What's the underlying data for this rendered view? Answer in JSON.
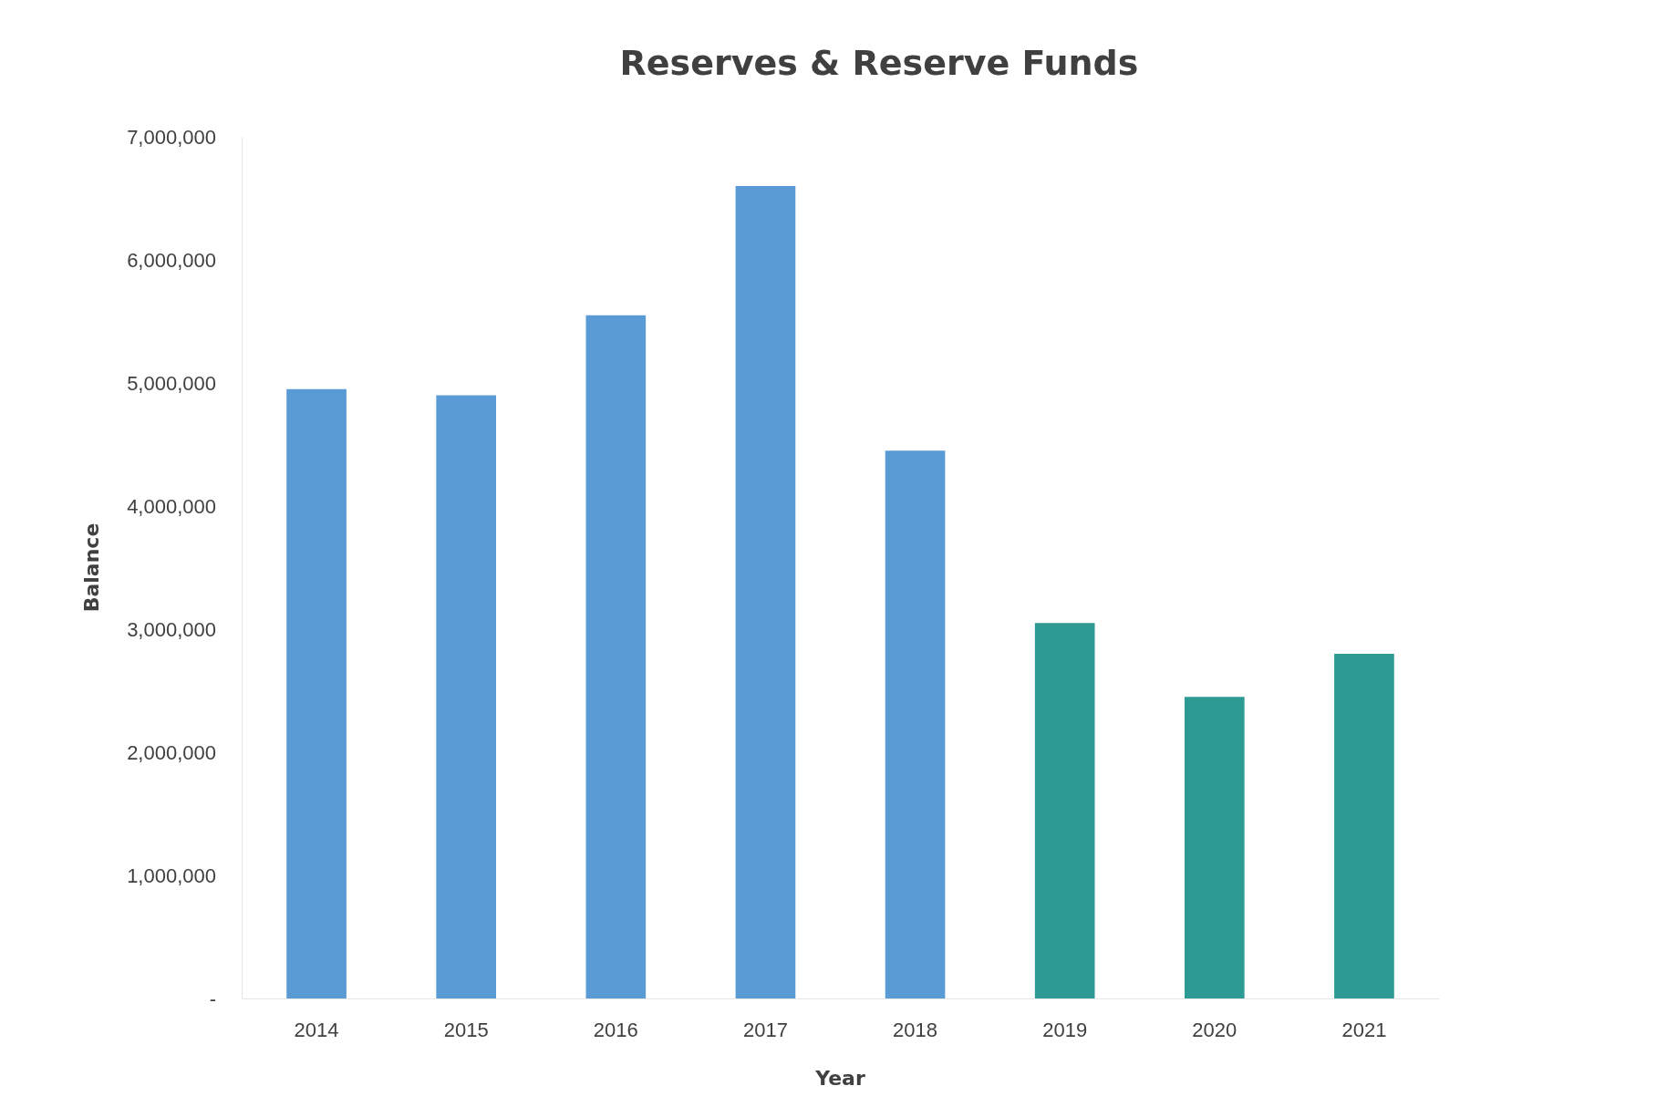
{
  "chart_data": {
    "type": "bar",
    "title": "Reserves & Reserve Funds",
    "xlabel": "Year",
    "ylabel": "Balance",
    "categories": [
      "2014",
      "2015",
      "2016",
      "2017",
      "2018",
      "2019",
      "2020",
      "2021"
    ],
    "values": [
      4950000,
      4900000,
      5550000,
      6600000,
      4450000,
      3050000,
      2450000,
      2800000
    ],
    "colors": [
      "#5b9bd5",
      "#5b9bd5",
      "#5b9bd5",
      "#5b9bd5",
      "#5b9bd5",
      "#2e9a94",
      "#2e9a94",
      "#2e9a94"
    ],
    "ylim": [
      0,
      7000000
    ],
    "yticks": [
      {
        "value": 0,
        "label": "-"
      },
      {
        "value": 1000000,
        "label": "1,000,000"
      },
      {
        "value": 2000000,
        "label": "2,000,000"
      },
      {
        "value": 3000000,
        "label": "3,000,000"
      },
      {
        "value": 4000000,
        "label": "4,000,000"
      },
      {
        "value": 5000000,
        "label": "5,000,000"
      },
      {
        "value": 6000000,
        "label": "6,000,000"
      },
      {
        "value": 7000000,
        "label": "7,000,000"
      }
    ],
    "grid": false
  }
}
